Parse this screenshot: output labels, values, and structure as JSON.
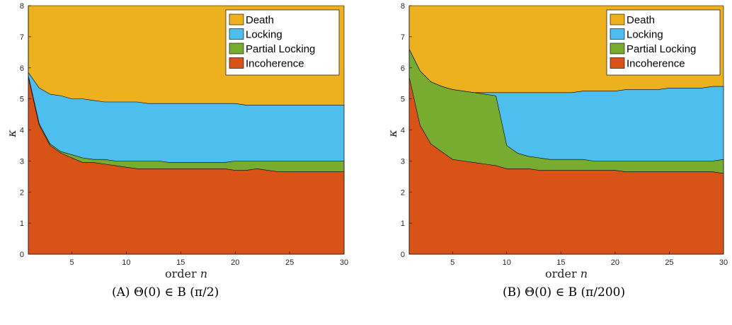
{
  "colors": {
    "Death": "#EDB120",
    "Locking": "#4DBEEE",
    "Partial Locking": "#77AC30",
    "Incoherence": "#D95319"
  },
  "chart_data": [
    {
      "type": "area",
      "caption_tag": "(A)",
      "caption_math": "Θ(0) ∈ B (π/2)",
      "xlabel": "order n",
      "ylabel": "κ",
      "xlim": [
        1,
        30
      ],
      "ylim": [
        0,
        8
      ],
      "xticks": [
        5,
        10,
        15,
        20,
        25,
        30
      ],
      "yticks": [
        0,
        1,
        2,
        3,
        4,
        5,
        6,
        7,
        8
      ],
      "legend_position": "top-right",
      "grid": false,
      "x": [
        1,
        2,
        3,
        4,
        5,
        6,
        7,
        8,
        9,
        10,
        11,
        12,
        13,
        14,
        15,
        16,
        17,
        18,
        19,
        20,
        21,
        22,
        23,
        24,
        25,
        26,
        27,
        28,
        29,
        30
      ],
      "boundaries": [
        {
          "name": "Incoherence",
          "values": [
            5.7,
            4.15,
            3.5,
            3.25,
            3.1,
            2.95,
            2.95,
            2.9,
            2.85,
            2.8,
            2.75,
            2.75,
            2.75,
            2.75,
            2.75,
            2.75,
            2.75,
            2.75,
            2.75,
            2.7,
            2.7,
            2.75,
            2.7,
            2.65,
            2.65,
            2.65,
            2.65,
            2.65,
            2.65,
            2.65
          ]
        },
        {
          "name": "Partial Locking",
          "values": [
            5.75,
            4.2,
            3.55,
            3.3,
            3.2,
            3.1,
            3.05,
            3.05,
            3.0,
            3.0,
            3.0,
            3.0,
            3.0,
            2.95,
            2.95,
            2.95,
            2.95,
            2.95,
            2.95,
            3.0,
            3.0,
            3.0,
            3.0,
            3.0,
            3.0,
            3.0,
            3.0,
            3.0,
            3.0,
            3.0
          ]
        },
        {
          "name": "Locking",
          "values": [
            5.85,
            5.35,
            5.15,
            5.1,
            5.0,
            5.0,
            4.95,
            4.9,
            4.9,
            4.9,
            4.9,
            4.85,
            4.85,
            4.85,
            4.85,
            4.85,
            4.85,
            4.85,
            4.85,
            4.85,
            4.8,
            4.8,
            4.8,
            4.8,
            4.8,
            4.8,
            4.8,
            4.8,
            4.8,
            4.8
          ]
        },
        {
          "name": "Death",
          "values": [
            8,
            8,
            8,
            8,
            8,
            8,
            8,
            8,
            8,
            8,
            8,
            8,
            8,
            8,
            8,
            8,
            8,
            8,
            8,
            8,
            8,
            8,
            8,
            8,
            8,
            8,
            8,
            8,
            8,
            8
          ]
        }
      ]
    },
    {
      "type": "area",
      "caption_tag": "(B)",
      "caption_math": "Θ(0) ∈ B (π/200)",
      "xlabel": "order n",
      "ylabel": "κ",
      "xlim": [
        1,
        30
      ],
      "ylim": [
        0,
        8
      ],
      "xticks": [
        5,
        10,
        15,
        20,
        25,
        30
      ],
      "yticks": [
        0,
        1,
        2,
        3,
        4,
        5,
        6,
        7,
        8
      ],
      "legend_position": "top-right",
      "grid": false,
      "x": [
        1,
        2,
        3,
        4,
        5,
        6,
        7,
        8,
        9,
        10,
        11,
        12,
        13,
        14,
        15,
        16,
        17,
        18,
        19,
        20,
        21,
        22,
        23,
        24,
        25,
        26,
        27,
        28,
        29,
        30
      ],
      "boundaries": [
        {
          "name": "Incoherence",
          "values": [
            5.7,
            4.15,
            3.55,
            3.3,
            3.05,
            3.0,
            2.95,
            2.9,
            2.85,
            2.75,
            2.75,
            2.75,
            2.7,
            2.7,
            2.7,
            2.7,
            2.7,
            2.7,
            2.7,
            2.7,
            2.65,
            2.65,
            2.65,
            2.65,
            2.65,
            2.65,
            2.65,
            2.65,
            2.65,
            2.6
          ]
        },
        {
          "name": "Partial Locking",
          "values": [
            6.6,
            5.9,
            5.55,
            5.4,
            5.3,
            5.25,
            5.2,
            5.15,
            5.1,
            3.5,
            3.25,
            3.15,
            3.1,
            3.05,
            3.05,
            3.05,
            3.05,
            3.0,
            3.0,
            3.0,
            3.0,
            3.0,
            3.0,
            3.0,
            3.0,
            3.0,
            3.0,
            3.0,
            3.0,
            3.05
          ]
        },
        {
          "name": "Locking",
          "values": [
            6.6,
            5.9,
            5.55,
            5.4,
            5.3,
            5.25,
            5.2,
            5.2,
            5.2,
            5.2,
            5.2,
            5.2,
            5.2,
            5.2,
            5.2,
            5.2,
            5.25,
            5.25,
            5.25,
            5.25,
            5.3,
            5.3,
            5.3,
            5.3,
            5.35,
            5.35,
            5.35,
            5.35,
            5.4,
            5.4
          ]
        },
        {
          "name": "Death",
          "values": [
            8,
            8,
            8,
            8,
            8,
            8,
            8,
            8,
            8,
            8,
            8,
            8,
            8,
            8,
            8,
            8,
            8,
            8,
            8,
            8,
            8,
            8,
            8,
            8,
            8,
            8,
            8,
            8,
            8,
            8
          ]
        }
      ]
    }
  ],
  "legend": [
    "Death",
    "Locking",
    "Partial Locking",
    "Incoherence"
  ]
}
